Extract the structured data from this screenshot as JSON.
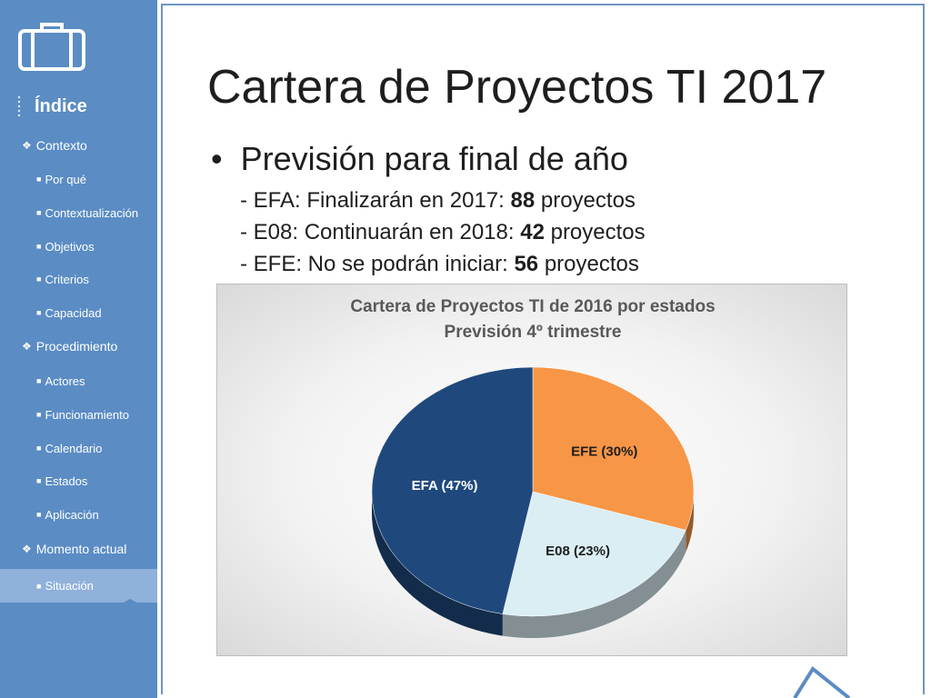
{
  "sidebar": {
    "index_title": "Índice",
    "items": [
      {
        "label": "Contexto",
        "level": "section"
      },
      {
        "label": "Por qué",
        "level": "sub"
      },
      {
        "label": "Contextualización",
        "level": "sub"
      },
      {
        "label": "Objetivos",
        "level": "sub"
      },
      {
        "label": "Criterios",
        "level": "sub"
      },
      {
        "label": "Capacidad",
        "level": "sub"
      },
      {
        "label": "Procedimiento",
        "level": "section"
      },
      {
        "label": "Actores",
        "level": "sub"
      },
      {
        "label": "Funcionamiento",
        "level": "sub"
      },
      {
        "label": "Calendario",
        "level": "sub"
      },
      {
        "label": "Estados",
        "level": "sub"
      },
      {
        "label": "Aplicación",
        "level": "sub"
      },
      {
        "label": "Momento actual",
        "level": "section"
      },
      {
        "label": "Situación",
        "level": "sub",
        "active": true
      }
    ]
  },
  "slide": {
    "title": "Cartera de Proyectos TI 2017",
    "bullet": "Previsión para final de año",
    "details": [
      {
        "prefix": "- EFA: Finalizarán en 2017: ",
        "value": "88",
        "suffix": " proyectos"
      },
      {
        "prefix": "- E08: Continuarán en 2018: ",
        "value": "42",
        "suffix": " proyectos"
      },
      {
        "prefix": "- EFE: No se podrán iniciar: ",
        "value": "56",
        "suffix": " proyectos"
      }
    ]
  },
  "chart_data": {
    "type": "pie",
    "title": "Cartera de Proyectos TI de 2016 por estados",
    "subtitle": "Previsión 4º trimestre",
    "slices": [
      {
        "label": "EFE (30%)",
        "name": "EFE",
        "percent": 30,
        "color": "#f79646",
        "text_color": "#1e1e1e"
      },
      {
        "label": "E08 (23%)",
        "name": "E08",
        "percent": 23,
        "color": "#dbeef4",
        "text_color": "#1e1e1e"
      },
      {
        "label": "EFA (47%)",
        "name": "EFA",
        "percent": 47,
        "color": "#1f497d",
        "text_color": "#ffffff"
      }
    ]
  },
  "colors": {
    "sidebar": "#5b8cc4",
    "active_item": "#8fb1da",
    "accent_border": "#6f95c4"
  },
  "icons": {
    "logo": "briefcase-icon",
    "index": "dotted-line-icon",
    "section_marker": "diamond-bullet-icon",
    "sub_marker": "square-bullet-icon"
  }
}
